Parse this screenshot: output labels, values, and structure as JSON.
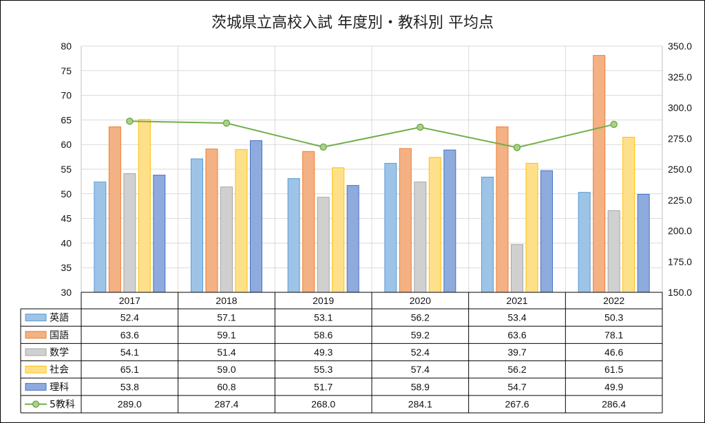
{
  "chart_data": {
    "type": "bar",
    "title": "茨城県立高校入試 年度別・教科別 平均点",
    "categories": [
      "2017",
      "2018",
      "2019",
      "2020",
      "2021",
      "2022"
    ],
    "y_left": {
      "min": 30,
      "max": 80,
      "step": 5,
      "ticks": [
        "80",
        "75",
        "70",
        "65",
        "60",
        "55",
        "50",
        "45",
        "40",
        "35",
        "30"
      ]
    },
    "y_right": {
      "min": 150,
      "max": 350,
      "step": 25,
      "ticks": [
        "350.0",
        "325.0",
        "300.0",
        "275.0",
        "250.0",
        "225.0",
        "200.0",
        "175.0",
        "150.0"
      ]
    },
    "grid": true,
    "legend": "data-table",
    "series": [
      {
        "name": "英語",
        "values": [
          52.4,
          57.1,
          53.1,
          56.2,
          53.4,
          50.3
        ],
        "labels": [
          "52.4",
          "57.1",
          "53.1",
          "56.2",
          "53.4",
          "50.3"
        ],
        "color": "#9dc3e6",
        "stroke": "#5b9bd5",
        "kind": "bar",
        "axis": "left"
      },
      {
        "name": "国語",
        "values": [
          63.6,
          59.1,
          58.6,
          59.2,
          63.6,
          78.1
        ],
        "labels": [
          "63.6",
          "59.1",
          "58.6",
          "59.2",
          "63.6",
          "78.1"
        ],
        "color": "#f4b183",
        "stroke": "#ed7d31",
        "kind": "bar",
        "axis": "left"
      },
      {
        "name": "数学",
        "values": [
          54.1,
          51.4,
          49.3,
          52.4,
          39.7,
          46.6
        ],
        "labels": [
          "54.1",
          "51.4",
          "49.3",
          "52.4",
          "39.7",
          "46.6"
        ],
        "color": "#d0d0d0",
        "stroke": "#a5a5a5",
        "kind": "bar",
        "axis": "left"
      },
      {
        "name": "社会",
        "values": [
          65.1,
          59.0,
          55.3,
          57.4,
          56.2,
          61.5
        ],
        "labels": [
          "65.1",
          "59.0",
          "55.3",
          "57.4",
          "56.2",
          "61.5"
        ],
        "color": "#ffe08a",
        "stroke": "#ffc000",
        "kind": "bar",
        "axis": "left"
      },
      {
        "name": "理科",
        "values": [
          53.8,
          60.8,
          51.7,
          58.9,
          54.7,
          49.9
        ],
        "labels": [
          "53.8",
          "60.8",
          "51.7",
          "58.9",
          "54.7",
          "49.9"
        ],
        "color": "#8faadc",
        "stroke": "#4472c4",
        "kind": "bar",
        "axis": "left"
      },
      {
        "name": "5教科",
        "values": [
          289.0,
          287.4,
          268.0,
          284.1,
          267.6,
          286.4
        ],
        "labels": [
          "289.0",
          "287.4",
          "268.0",
          "284.1",
          "267.6",
          "286.4"
        ],
        "color": "#70ad47",
        "stroke": "#70ad47",
        "kind": "line",
        "axis": "right"
      }
    ]
  }
}
